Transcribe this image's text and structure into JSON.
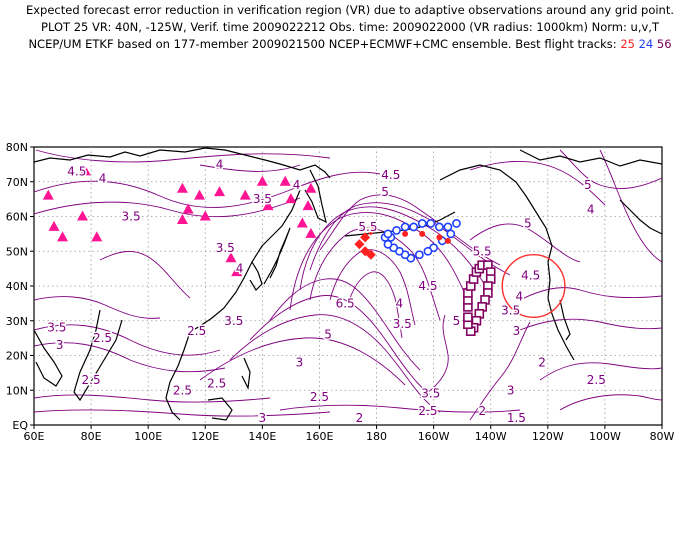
{
  "title": {
    "line1": "Expected forecast error reduction in verification region (VR) due to adaptive observations around any grid point.",
    "line2": "PLOT 25 VR: 40N, -125W, Verif. time 2009022212 Obs. time: 2009022000 (VR radius: 1000km) Norm: u,v,T",
    "line3_prefix": "NCEP/UM ETKF based on 177-member 2009021500 NCEP+ECMWF+CMC ensemble. Best flight tracks:",
    "tracks": [
      {
        "label": "25",
        "color": "#ff2020"
      },
      {
        "label": "24",
        "color": "#2040ff"
      },
      {
        "label": "56",
        "color": "#800060"
      }
    ]
  },
  "chart_data": {
    "type": "contour-map",
    "xlim_lon": [
      60,
      280
    ],
    "ylim_lat": [
      0,
      80
    ],
    "x_ticks": [
      "60E",
      "80E",
      "100E",
      "120E",
      "140E",
      "160E",
      "180",
      "160W",
      "140W",
      "120W",
      "100W",
      "80W"
    ],
    "y_ticks": [
      "EQ",
      "10N",
      "20N",
      "30N",
      "40N",
      "50N",
      "60N",
      "70N",
      "80N"
    ],
    "grid": "dotted",
    "contour_color": "#800080",
    "contour_levels": [
      1.5,
      2,
      2.5,
      3,
      3.5,
      4,
      4.5,
      5,
      5.5,
      6,
      6.5
    ],
    "contour_labels": [
      {
        "text": "4.5",
        "lon": 75,
        "lat": 73
      },
      {
        "text": "4",
        "lon": 84,
        "lat": 71
      },
      {
        "text": "4",
        "lon": 125,
        "lat": 75
      },
      {
        "text": "3.5",
        "lon": 94,
        "lat": 60
      },
      {
        "text": "3.5",
        "lon": 127,
        "lat": 51
      },
      {
        "text": "4",
        "lon": 132,
        "lat": 45
      },
      {
        "text": "3.5",
        "lon": 140,
        "lat": 65
      },
      {
        "text": "4",
        "lon": 152,
        "lat": 69
      },
      {
        "text": "4.5",
        "lon": 185,
        "lat": 72
      },
      {
        "text": "5",
        "lon": 183,
        "lat": 67
      },
      {
        "text": "5.5",
        "lon": 177,
        "lat": 57
      },
      {
        "text": "5.5",
        "lon": 217,
        "lat": 50
      },
      {
        "text": "5",
        "lon": 233,
        "lat": 58
      },
      {
        "text": "5",
        "lon": 254,
        "lat": 69
      },
      {
        "text": "4",
        "lon": 255,
        "lat": 62
      },
      {
        "text": "4.5",
        "lon": 234,
        "lat": 43
      },
      {
        "text": "4",
        "lon": 230,
        "lat": 37
      },
      {
        "text": "3.5",
        "lon": 227,
        "lat": 33
      },
      {
        "text": "3",
        "lon": 229,
        "lat": 27
      },
      {
        "text": "4.5",
        "lon": 198,
        "lat": 40
      },
      {
        "text": "4",
        "lon": 188,
        "lat": 35
      },
      {
        "text": "3.5",
        "lon": 189,
        "lat": 29
      },
      {
        "text": "5",
        "lon": 208,
        "lat": 30
      },
      {
        "text": "6.5",
        "lon": 169,
        "lat": 35
      },
      {
        "text": "5",
        "lon": 163,
        "lat": 26
      },
      {
        "text": "3.5",
        "lon": 130,
        "lat": 30
      },
      {
        "text": "3",
        "lon": 153,
        "lat": 18
      },
      {
        "text": "3.5",
        "lon": 68,
        "lat": 28
      },
      {
        "text": "3",
        "lon": 69,
        "lat": 23
      },
      {
        "text": "2.5",
        "lon": 84,
        "lat": 25
      },
      {
        "text": "2.5",
        "lon": 80,
        "lat": 13
      },
      {
        "text": "2.5",
        "lon": 117,
        "lat": 27
      },
      {
        "text": "2.5",
        "lon": 112,
        "lat": 10
      },
      {
        "text": "2.5",
        "lon": 124,
        "lat": 12
      },
      {
        "text": "3",
        "lon": 128,
        "lat": -3
      },
      {
        "text": "3",
        "lon": 140,
        "lat": 2
      },
      {
        "text": "2.5",
        "lon": 160,
        "lat": 8
      },
      {
        "text": "2",
        "lon": 174,
        "lat": 2
      },
      {
        "text": "3.5",
        "lon": 199,
        "lat": 9
      },
      {
        "text": "2.5",
        "lon": 198,
        "lat": 4
      },
      {
        "text": "2",
        "lon": 217,
        "lat": 4
      },
      {
        "text": "1.5",
        "lon": 229,
        "lat": 2
      },
      {
        "text": "2",
        "lon": 238,
        "lat": 18
      },
      {
        "text": "2.5",
        "lon": 257,
        "lat": 13
      },
      {
        "text": "3",
        "lon": 227,
        "lat": 10
      }
    ],
    "verification_region": {
      "lat": 40,
      "lon": 235,
      "radius_km": 1000,
      "color": "#ff3030"
    },
    "triangles": {
      "color": "#ff1493",
      "points": [
        [
          65,
          66
        ],
        [
          78,
          73
        ],
        [
          67,
          57
        ],
        [
          77,
          60
        ],
        [
          70,
          54
        ],
        [
          82,
          54
        ],
        [
          112,
          68
        ],
        [
          114,
          62
        ],
        [
          112,
          59
        ],
        [
          120,
          60
        ],
        [
          118,
          66
        ],
        [
          125,
          67
        ],
        [
          134,
          66
        ],
        [
          140,
          70
        ],
        [
          142,
          63
        ],
        [
          148,
          70
        ],
        [
          150,
          65
        ],
        [
          156,
          63
        ],
        [
          157,
          68
        ],
        [
          154,
          58
        ],
        [
          157,
          55
        ],
        [
          129,
          48
        ],
        [
          131,
          44
        ]
      ]
    },
    "flight_track_red": {
      "color": "#ff2020",
      "points": [
        [
          178,
          56
        ],
        [
          176,
          54
        ],
        [
          174,
          52
        ],
        [
          176,
          50
        ],
        [
          178,
          49
        ]
      ]
    },
    "flight_track_blue": {
      "color": "#2040ff",
      "points": [
        [
          185,
          54
        ],
        [
          187,
          56
        ],
        [
          190,
          57
        ],
        [
          193,
          57
        ],
        [
          196,
          58
        ],
        [
          199,
          58
        ],
        [
          202,
          57
        ],
        [
          205,
          57
        ],
        [
          208,
          58
        ],
        [
          206,
          55
        ],
        [
          203,
          53
        ],
        [
          200,
          51
        ],
        [
          198,
          50
        ],
        [
          195,
          49
        ],
        [
          192,
          48
        ],
        [
          190,
          49
        ],
        [
          188,
          50
        ],
        [
          186,
          51
        ],
        [
          184,
          52
        ],
        [
          183,
          54
        ],
        [
          184,
          55
        ]
      ]
    },
    "flight_track_red_small": {
      "color": "#ff2020",
      "points": [
        [
          190,
          55
        ],
        [
          196,
          55
        ],
        [
          202,
          54
        ],
        [
          205,
          53
        ]
      ]
    },
    "flight_track_purple": {
      "color": "#800060",
      "points": [
        [
          212,
          34
        ],
        [
          212,
          36
        ],
        [
          212,
          38
        ],
        [
          213,
          40
        ],
        [
          214,
          42
        ],
        [
          215,
          44
        ],
        [
          216,
          45
        ],
        [
          217,
          46
        ],
        [
          219,
          46
        ],
        [
          220,
          44
        ],
        [
          220,
          42
        ],
        [
          219,
          40
        ],
        [
          219,
          38
        ],
        [
          218,
          36
        ],
        [
          217,
          34
        ],
        [
          216,
          32
        ],
        [
          215,
          30
        ],
        [
          214,
          28
        ],
        [
          213,
          27
        ],
        [
          212,
          29
        ],
        [
          212,
          31
        ]
      ]
    }
  }
}
